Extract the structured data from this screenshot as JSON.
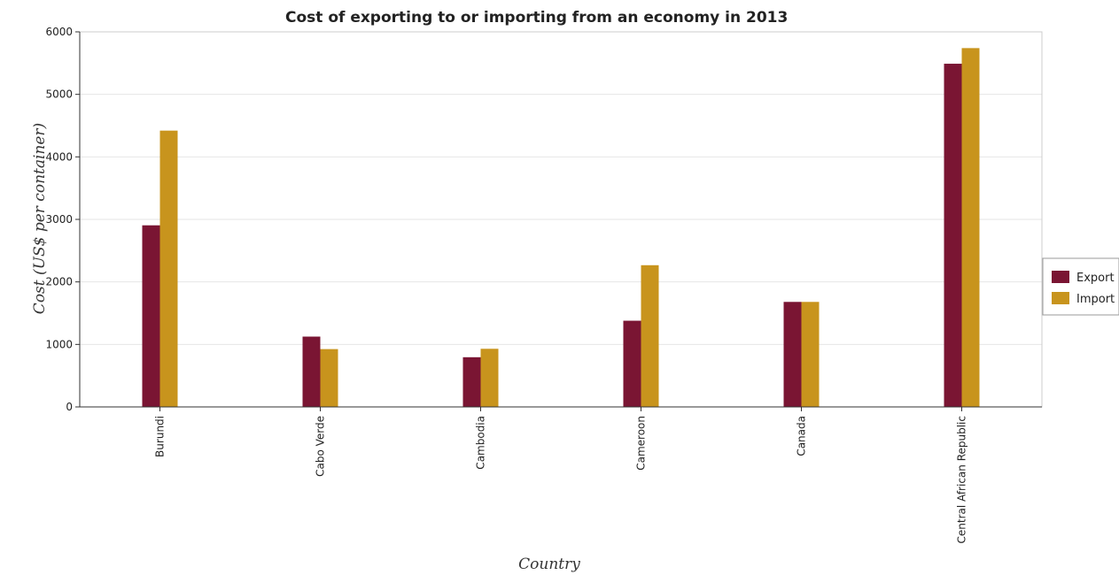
{
  "chart_data": {
    "type": "bar",
    "title": "Cost of exporting to or importing from an economy in 2013",
    "xlabel": "Country",
    "ylabel": "Cost (US$ per container)",
    "categories": [
      "Burundi",
      "Cabo Verde",
      "Cambodia",
      "Cameroon",
      "Canada",
      "Central African Republic"
    ],
    "series": [
      {
        "name": "Export",
        "color": "#7a1533",
        "values": [
          2905,
          1125,
          795,
          1379,
          1680,
          5490
        ]
      },
      {
        "name": "Import",
        "color": "#c8941d",
        "values": [
          4420,
          925,
          930,
          2267,
          1680,
          5740
        ]
      }
    ],
    "ylim": [
      0,
      6000
    ],
    "yticks": [
      0,
      1000,
      2000,
      3000,
      4000,
      5000,
      6000
    ],
    "grid": true,
    "legend_position": "right"
  }
}
